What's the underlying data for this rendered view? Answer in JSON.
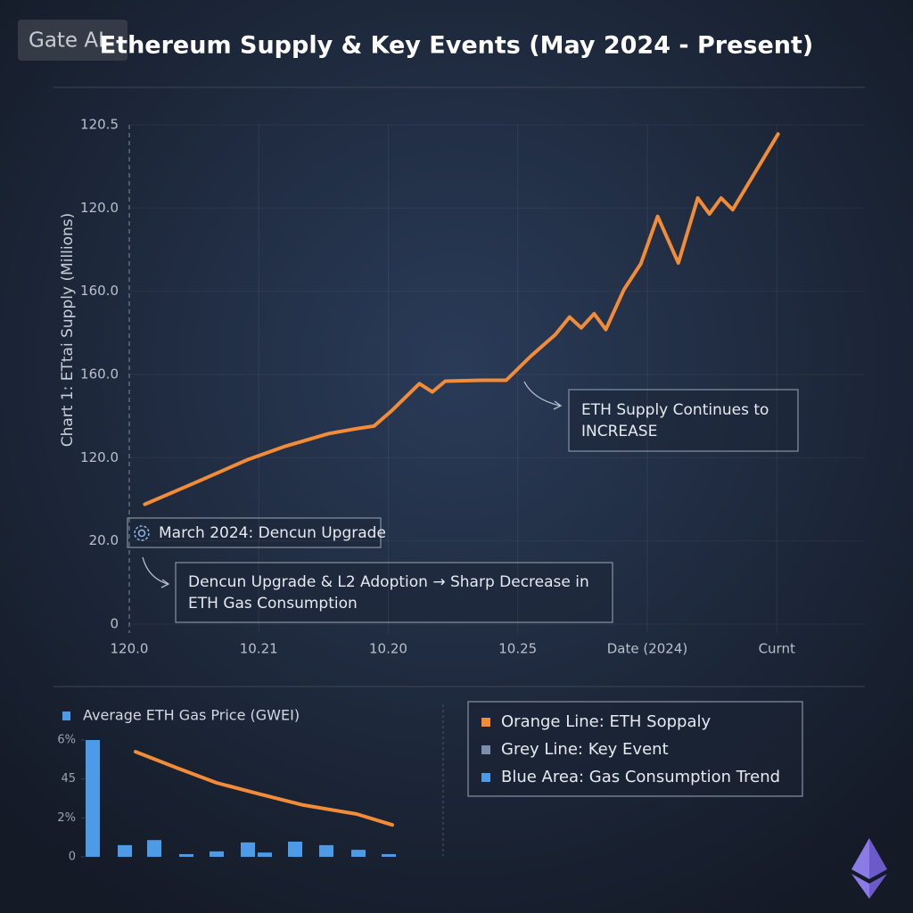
{
  "watermark": "Gate AI",
  "chart_data": [
    {
      "type": "line",
      "title": "Ethereum Supply & Key Events (May 2024 - Present)",
      "y_label": "Chart 1: ETtai Supply (Millions)",
      "xlim": [
        0,
        5.68
      ],
      "xticks": [
        {
          "value": 0,
          "label": "120.0"
        },
        {
          "value": 1,
          "label": "10.21"
        },
        {
          "value": 2,
          "label": "10.20"
        },
        {
          "value": 3,
          "label": "10.25"
        },
        {
          "value": 4,
          "label": "Date (2024)"
        },
        {
          "value": 5,
          "label": "Curnt"
        }
      ],
      "ylim": [
        0,
        6
      ],
      "yticks": [
        0,
        {
          "value": 1,
          "label": "20.0"
        },
        {
          "value": 2,
          "label": "120.0"
        },
        {
          "value": 3,
          "label": "160.0"
        },
        {
          "value": 4,
          "label": "160.0"
        },
        {
          "value": 5,
          "label": "120.0"
        },
        {
          "value": 6,
          "label": "120.5"
        }
      ],
      "grid": true,
      "series": [
        {
          "color": "#f28c38",
          "x": [
            0.12,
            0.48,
            0.92,
            1.21,
            1.54,
            1.76,
            1.89,
            2.03,
            2.24,
            2.34,
            2.44,
            2.72,
            2.91,
            3.1,
            3.29,
            3.4,
            3.49,
            3.59,
            3.68,
            3.82,
            3.95,
            4.08,
            4.24,
            4.39,
            4.48,
            4.57,
            4.66,
            5.01
          ],
          "values": [
            1.44,
            1.68,
            1.98,
            2.14,
            2.29,
            2.35,
            2.38,
            2.57,
            2.89,
            2.79,
            2.92,
            2.93,
            2.93,
            3.22,
            3.48,
            3.69,
            3.56,
            3.73,
            3.54,
            4.02,
            4.33,
            4.9,
            4.34,
            5.12,
            4.93,
            5.12,
            4.98,
            5.89
          ]
        }
      ],
      "annotations": [
        {
          "lines": [
            "ETH Supply Continues to",
            "INCREASE"
          ]
        },
        {
          "lines": [
            "March 2024: Dencun Upgrade"
          ]
        },
        {
          "lines": [
            "Dencun Upgrade & L2 Adoption → Sharp Decrease in",
            "ETH Gas Consumption"
          ]
        }
      ]
    },
    {
      "type": "bar",
      "xlim": [
        0,
        36
      ],
      "ylim": [
        0,
        3
      ],
      "yticks": [
        0,
        {
          "value": 1,
          "label": "2%"
        },
        {
          "value": 2,
          "label": "45"
        },
        {
          "value": 3,
          "label": "6%"
        }
      ],
      "series": [
        {
          "type": "bar",
          "name": "Average ETH Gas Price (GWEI)",
          "color": "#4d9be6",
          "x": [
            0.9,
            4.5,
            7.8,
            11.4,
            14.8,
            18.3,
            20.2,
            23.6,
            27.1,
            30.7,
            34.1
          ],
          "values": [
            3.0,
            0.3,
            0.43,
            0.07,
            0.14,
            0.37,
            0.11,
            0.39,
            0.3,
            0.18,
            0.07
          ]
        },
        {
          "type": "line",
          "color": "#f28c38",
          "x": [
            5.7,
            10.5,
            14.8,
            19.5,
            24.5,
            30.5,
            34.5
          ],
          "values": [
            2.7,
            2.27,
            1.9,
            1.62,
            1.33,
            1.1,
            0.82
          ]
        }
      ]
    }
  ],
  "legend_panel": [
    {
      "label": "Orange Line: ETH Soppaly",
      "color": "#f28c38"
    },
    {
      "label": "Grey Line: Key Event",
      "color": "#7d8fa8"
    },
    {
      "label": "Blue Area: Gas Consumption Trend",
      "color": "#4d9be6"
    }
  ]
}
